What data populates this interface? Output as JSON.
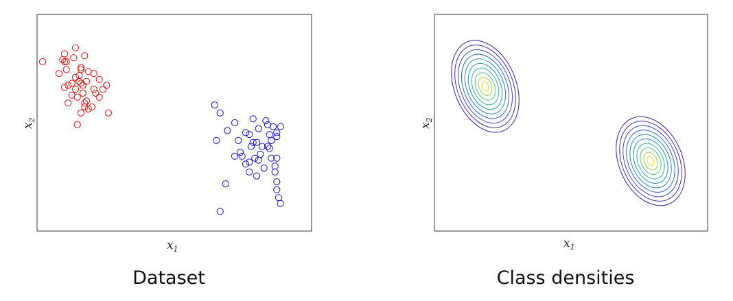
{
  "chart_data": [
    {
      "type": "scatter",
      "title": "",
      "xlabel": "x1",
      "ylabel": "x2",
      "xlim": [
        -3,
        12
      ],
      "ylim": [
        -4,
        7
      ],
      "grid": false,
      "series": [
        {
          "color": "#e01010",
          "points": [
            [
              -2.7,
              4.6
            ],
            [
              -1.8,
              4.0
            ],
            [
              -1.5,
              4.6
            ],
            [
              -1.4,
              4.6
            ],
            [
              -1.6,
              4.7
            ],
            [
              -1.5,
              5.0
            ],
            [
              -1.4,
              4.2
            ],
            [
              -0.9,
              5.3
            ],
            [
              -1.0,
              4.8
            ],
            [
              -0.6,
              4.3
            ],
            [
              -0.4,
              4.9
            ],
            [
              -0.7,
              3.9
            ],
            [
              -0.9,
              3.8
            ],
            [
              -0.3,
              3.6
            ],
            [
              0.1,
              4.0
            ],
            [
              -0.2,
              4.1
            ],
            [
              -0.6,
              4.2
            ],
            [
              -1.1,
              3.5
            ],
            [
              -1.3,
              3.4
            ],
            [
              -0.9,
              3.2
            ],
            [
              -0.8,
              2.8
            ],
            [
              -0.5,
              3.0
            ],
            [
              -0.3,
              2.6
            ],
            [
              -0.4,
              2.5
            ],
            [
              0.0,
              2.3
            ],
            [
              -0.6,
              2.0
            ],
            [
              -0.8,
              1.4
            ],
            [
              0.6,
              3.2
            ],
            [
              0.2,
              3.0
            ],
            [
              -1.3,
              2.5
            ],
            [
              0.4,
              3.7
            ],
            [
              0.8,
              3.4
            ],
            [
              -0.5,
              3.4
            ],
            [
              -1.5,
              3.3
            ],
            [
              -0.4,
              2.3
            ],
            [
              -1.1,
              2.9
            ],
            [
              -0.7,
              3.6
            ],
            [
              0.1,
              3.2
            ],
            [
              -0.2,
              2.2
            ],
            [
              0.4,
              2.8
            ],
            [
              0.9,
              2.0
            ],
            [
              -0.6,
              3.5
            ]
          ]
        },
        {
          "color": "#1010d0",
          "points": [
            [
              6.7,
              2.4
            ],
            [
              7.0,
              2.0
            ],
            [
              7.8,
              1.5
            ],
            [
              8.0,
              0.6
            ],
            [
              8.8,
              1.7
            ],
            [
              8.4,
              1.0
            ],
            [
              7.4,
              1.1
            ],
            [
              6.8,
              0.6
            ],
            [
              8.6,
              0.9
            ],
            [
              8.8,
              0.5
            ],
            [
              9.1,
              1.2
            ],
            [
              9.5,
              1.6
            ],
            [
              9.6,
              1.4
            ],
            [
              9.7,
              0.9
            ],
            [
              9.8,
              0.6
            ],
            [
              9.6,
              0.3
            ],
            [
              9.3,
              0.3
            ],
            [
              9.2,
              -0.1
            ],
            [
              9.0,
              0.5
            ],
            [
              8.7,
              0.3
            ],
            [
              8.9,
              -0.3
            ],
            [
              8.6,
              -0.5
            ],
            [
              8.2,
              -0.2
            ],
            [
              8.4,
              -0.6
            ],
            [
              9.1,
              -0.4
            ],
            [
              9.4,
              -0.8
            ],
            [
              9.8,
              -0.3
            ],
            [
              10.1,
              -0.3
            ],
            [
              10.0,
              -0.7
            ],
            [
              10.1,
              0.8
            ],
            [
              10.3,
              1.3
            ],
            [
              9.9,
              1.3
            ],
            [
              9.7,
              0.2
            ],
            [
              10.1,
              1.0
            ],
            [
              10.0,
              -1.0
            ],
            [
              9.0,
              -1.2
            ],
            [
              8.6,
              -1.0
            ],
            [
              10.1,
              -1.5
            ],
            [
              10.1,
              -1.9
            ],
            [
              10.2,
              -2.3
            ],
            [
              10.3,
              -2.6
            ],
            [
              7.3,
              -1.6
            ],
            [
              7.0,
              -3.0
            ],
            [
              8.1,
              0.0
            ],
            [
              7.8,
              -0.2
            ]
          ]
        }
      ]
    },
    {
      "type": "contour",
      "title": "",
      "xlabel": "x1",
      "ylabel": "x2",
      "grid": false,
      "levels_colors": [
        "#3b1fa0",
        "#3d2fb0",
        "#3848c0",
        "#2a63c8",
        "#1f80c8",
        "#1a9ab5",
        "#2ab39a",
        "#4fc47a",
        "#9bd24a",
        "#e2d92a"
      ]
    }
  ],
  "captions": {
    "left": "Dataset",
    "right": "Class densities"
  }
}
